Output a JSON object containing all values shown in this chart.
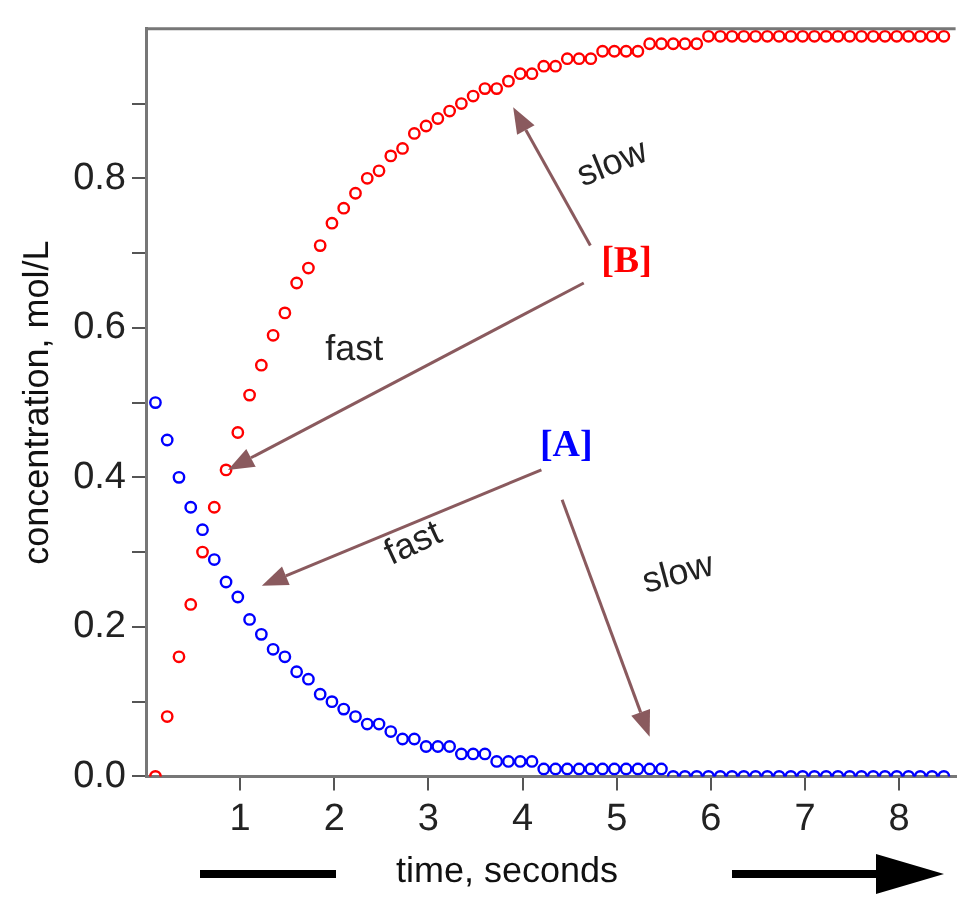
{
  "chart_data": {
    "type": "scatter",
    "xlabel": "time, seconds",
    "ylabel": "concentration, mol/L",
    "x": [
      0.1,
      0.225,
      0.35,
      0.475,
      0.6,
      0.725,
      0.85,
      0.975,
      1.1,
      1.225,
      1.35,
      1.475,
      1.6,
      1.725,
      1.85,
      1.975,
      2.1,
      2.225,
      2.35,
      2.475,
      2.6,
      2.725,
      2.85,
      2.975,
      3.1,
      3.225,
      3.35,
      3.475,
      3.6,
      3.725,
      3.85,
      3.975,
      4.1,
      4.225,
      4.35,
      4.475,
      4.6,
      4.725,
      4.85,
      4.975,
      5.1,
      5.225,
      5.35,
      5.475,
      5.6,
      5.725,
      5.85,
      5.975,
      6.1,
      6.225,
      6.35,
      6.475,
      6.6,
      6.725,
      6.85,
      6.975,
      7.1,
      7.225,
      7.35,
      7.475,
      7.6,
      7.725,
      7.85,
      7.975,
      8.1,
      8.225,
      8.35,
      8.475
    ],
    "series": [
      {
        "name": "[B]",
        "color": "#ff0000",
        "values": [
          0,
          0.08,
          0.16,
          0.23,
          0.3,
          0.36,
          0.41,
          0.46,
          0.51,
          0.55,
          0.59,
          0.62,
          0.66,
          0.68,
          0.71,
          0.74,
          0.76,
          0.78,
          0.8,
          0.81,
          0.83,
          0.84,
          0.86,
          0.87,
          0.88,
          0.89,
          0.9,
          0.91,
          0.92,
          0.92,
          0.93,
          0.94,
          0.94,
          0.95,
          0.95,
          0.96,
          0.96,
          0.96,
          0.97,
          0.97,
          0.97,
          0.97,
          0.98,
          0.98,
          0.98,
          0.98,
          0.98,
          0.99,
          0.99,
          0.99,
          0.99,
          0.99,
          0.99,
          0.99,
          0.99,
          0.99,
          0.99,
          0.99,
          0.99,
          0.99,
          0.99,
          0.99,
          0.99,
          0.99,
          0.99,
          0.99,
          0.99,
          0.99
        ]
      },
      {
        "name": "[A]",
        "color": "#0000ff",
        "values": [
          0.5,
          0.45,
          0.4,
          0.36,
          0.33,
          0.29,
          0.26,
          0.24,
          0.21,
          0.19,
          0.17,
          0.16,
          0.14,
          0.13,
          0.11,
          0.1,
          0.09,
          0.08,
          0.07,
          0.07,
          0.06,
          0.05,
          0.05,
          0.04,
          0.04,
          0.04,
          0.03,
          0.03,
          0.03,
          0.02,
          0.02,
          0.02,
          0.02,
          0.01,
          0.01,
          0.01,
          0.01,
          0.01,
          0.01,
          0.01,
          0.01,
          0.01,
          0.01,
          0.01,
          0,
          0,
          0,
          0,
          0,
          0,
          0,
          0,
          0,
          0,
          0,
          0,
          0,
          0,
          0,
          0,
          0,
          0,
          0,
          0,
          0,
          0,
          0,
          0
        ]
      }
    ],
    "xlim": [
      0,
      8.6
    ],
    "xticks": [
      1,
      2,
      3,
      4,
      5,
      6,
      7,
      8
    ],
    "ylim": [
      0,
      1
    ],
    "yticks": [
      {
        "value": 0,
        "label": "0.0"
      },
      {
        "value": 0.1,
        "label": null
      },
      {
        "value": 0.2,
        "label": "0.2"
      },
      {
        "value": 0.3,
        "label": null
      },
      {
        "value": 0.4,
        "label": "0.4"
      },
      {
        "value": 0.5,
        "label": null
      },
      {
        "value": 0.6,
        "label": "0.6"
      },
      {
        "value": 0.7,
        "label": null
      },
      {
        "value": 0.8,
        "label": "0.8"
      },
      {
        "value": 0.9,
        "label": null
      }
    ],
    "annotations": [
      "fast",
      "slow",
      "fast",
      "slow"
    ],
    "grid": false,
    "legend": false,
    "marker": "circle"
  }
}
